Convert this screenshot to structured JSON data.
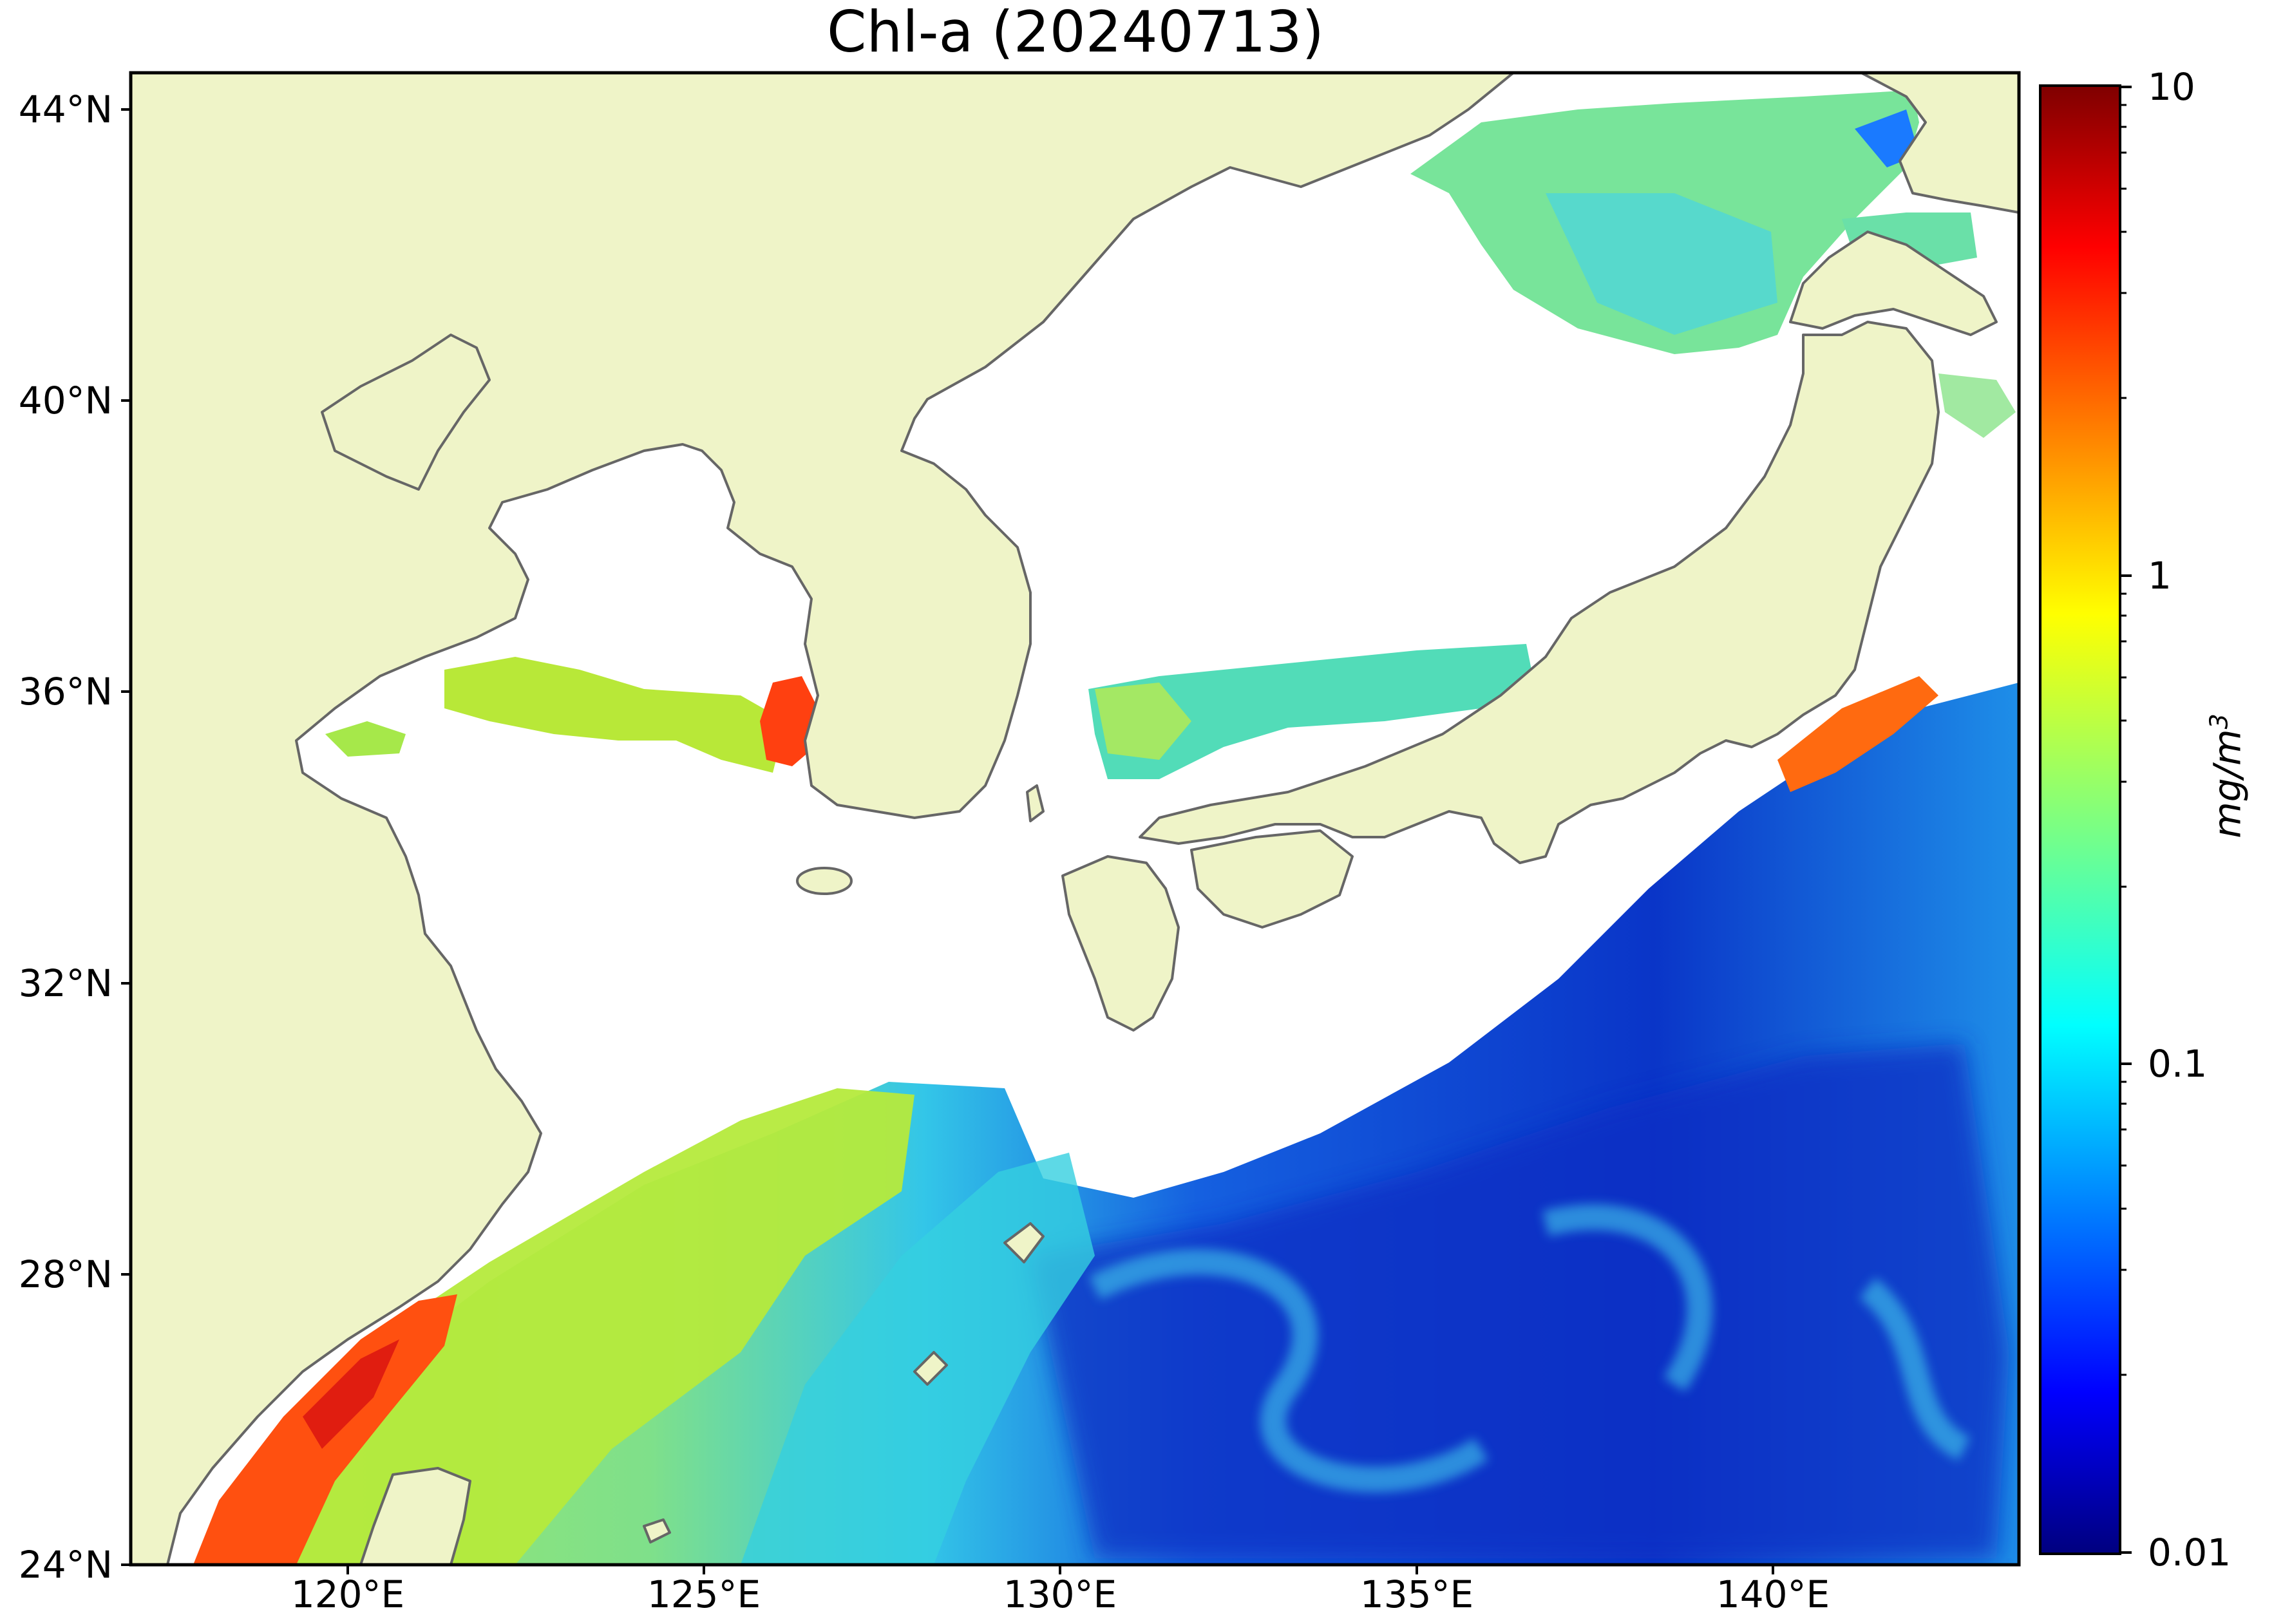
{
  "title": "Chl-a (20240713)",
  "lat_labels": [
    "44°N",
    "40°N",
    "36°N",
    "32°N",
    "28°N",
    "24°N"
  ],
  "lon_labels": [
    "120°E",
    "125°E",
    "130°E",
    "135°E",
    "140°E"
  ],
  "colorbar": {
    "ticks": [
      "10",
      "1",
      "0.1",
      "0.01"
    ],
    "unit_main": "mg/m",
    "unit_sup": "3",
    "colormap": "jet",
    "scale": "log",
    "range": [
      0.01,
      10
    ]
  },
  "colors": {
    "land": "#eff4c8",
    "coastline": "#666666",
    "no_data": "#ffffff",
    "frame": "#000000"
  }
}
